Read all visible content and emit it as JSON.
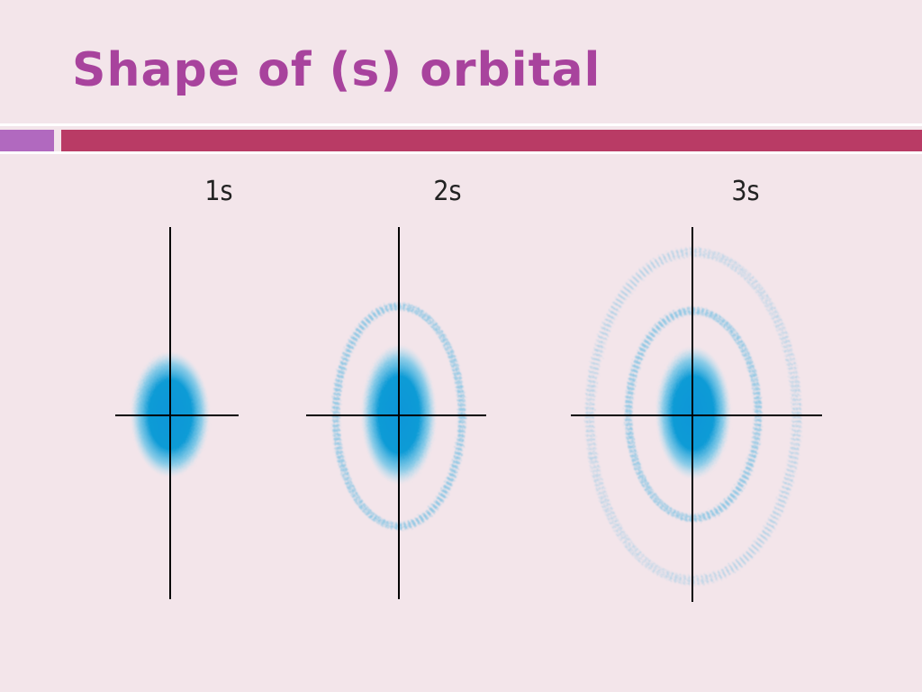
{
  "header": {
    "title": "Shape of (s) orbital"
  },
  "orbitals": [
    {
      "label": "1s"
    },
    {
      "label": "2s"
    },
    {
      "label": "3s"
    }
  ]
}
